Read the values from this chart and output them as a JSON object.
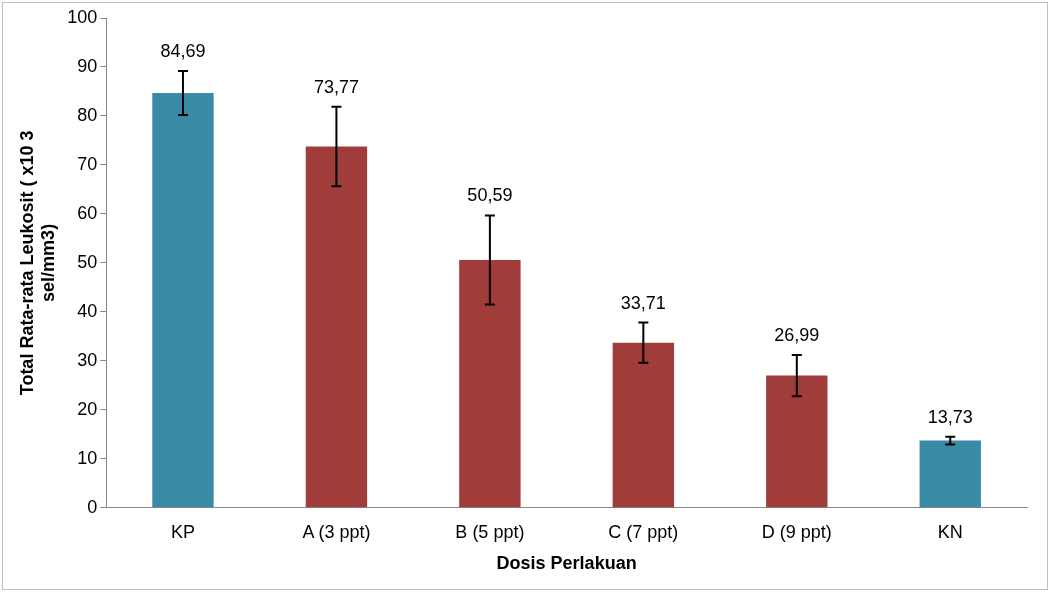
{
  "chart_data": {
    "type": "bar",
    "xlabel": "Dosis Perlakuan",
    "ylabel": "Total  Rata-rata Leukosit ( x10 3 sel/mm3)",
    "categories": [
      "KP",
      "A (3 ppt)",
      "B (5 ppt)",
      "C (7 ppt)",
      "D (9 ppt)",
      "KN"
    ],
    "values": [
      84.69,
      73.77,
      50.59,
      33.71,
      26.99,
      13.73
    ],
    "value_labels": [
      "84,69",
      "73,77",
      "50,59",
      "33,71",
      "26,99",
      "13,73"
    ],
    "errors": [
      4.5,
      8.1,
      9.1,
      4.1,
      4.2,
      0.8
    ],
    "colors": [
      "#3a8ca6",
      "#a03c3a",
      "#a03c3a",
      "#a03c3a",
      "#a03c3a",
      "#3a8ca6"
    ],
    "ylim": [
      0,
      100
    ],
    "yticks": [
      0,
      10,
      20,
      30,
      40,
      50,
      60,
      70,
      80,
      90,
      100
    ],
    "grid": false,
    "legend": false
  }
}
